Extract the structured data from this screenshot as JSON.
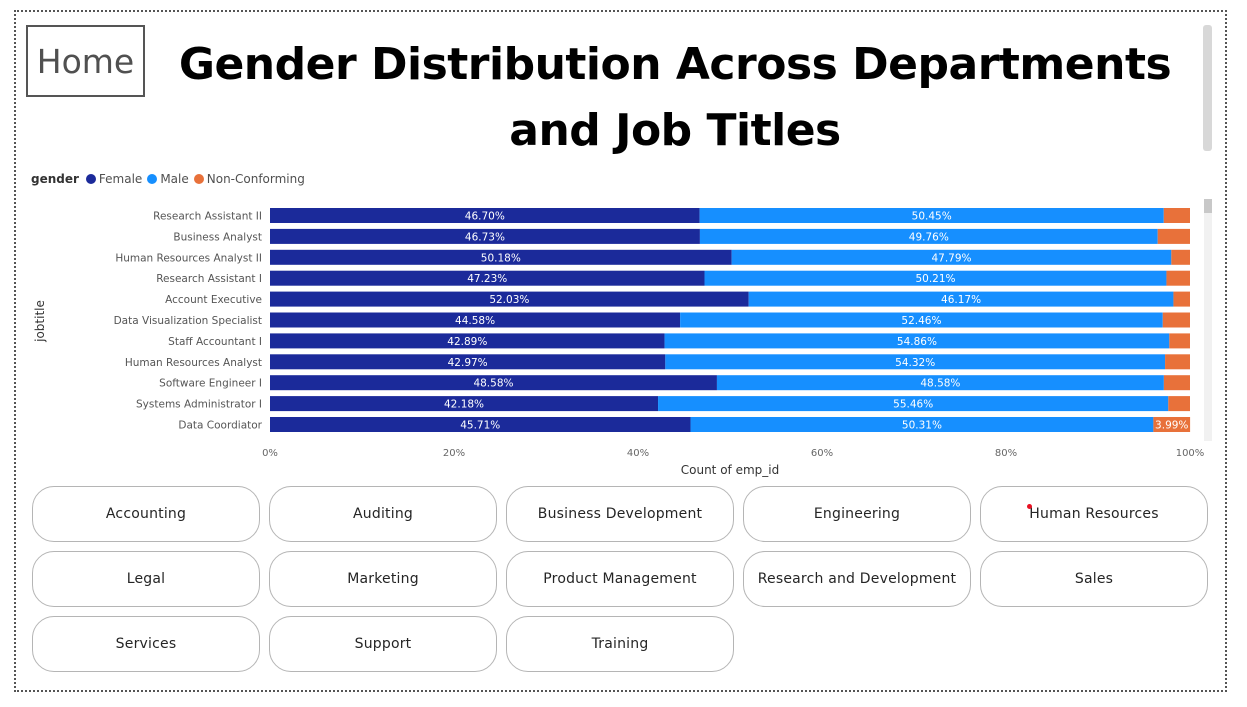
{
  "home_button": {
    "label": "Home"
  },
  "title": {
    "line1": "Gender Distribution Across Departments",
    "line2": "and Job Titles"
  },
  "legend": {
    "title": "gender",
    "items": [
      {
        "label": "Female",
        "color": "#1B2A9A"
      },
      {
        "label": "Male",
        "color": "#168FFF"
      },
      {
        "label": "Non-Conforming",
        "color": "#E8713A"
      }
    ]
  },
  "chart_data": {
    "type": "bar",
    "orientation": "horizontal",
    "stacking": "100%",
    "xlabel": "Count of emp_id",
    "ylabel": "jobtitle",
    "xlim": [
      0,
      100
    ],
    "x_ticks": [
      "0%",
      "20%",
      "40%",
      "60%",
      "80%",
      "100%"
    ],
    "grid": false,
    "legend_position": "top-left",
    "categories": [
      "Research Assistant II",
      "Business Analyst",
      "Human Resources Analyst II",
      "Research Assistant I",
      "Account Executive",
      "Data Visualization Specialist",
      "Staff Accountant I",
      "Human Resources Analyst",
      "Software Engineer I",
      "Systems Administrator I",
      "Data Coordiator"
    ],
    "series": [
      {
        "name": "Female",
        "color": "#1B2A9A",
        "values": [
          46.7,
          46.73,
          50.18,
          47.23,
          52.03,
          44.58,
          42.89,
          42.97,
          48.58,
          42.18,
          45.71
        ],
        "labels": [
          "46.70%",
          "46.73%",
          "50.18%",
          "47.23%",
          "52.03%",
          "44.58%",
          "42.89%",
          "42.97%",
          "48.58%",
          "42.18%",
          "45.71%"
        ]
      },
      {
        "name": "Male",
        "color": "#168FFF",
        "values": [
          50.45,
          49.76,
          47.79,
          50.21,
          46.17,
          52.46,
          54.86,
          54.32,
          48.58,
          55.46,
          50.31
        ],
        "labels": [
          "50.45%",
          "49.76%",
          "47.79%",
          "50.21%",
          "46.17%",
          "52.46%",
          "54.86%",
          "54.32%",
          "48.58%",
          "55.46%",
          "50.31%"
        ]
      },
      {
        "name": "Non-Conforming",
        "color": "#E8713A",
        "values": [
          2.85,
          3.51,
          2.03,
          2.56,
          1.8,
          2.96,
          2.25,
          2.71,
          2.84,
          2.36,
          3.99
        ],
        "labels": [
          "",
          "",
          "",
          "",
          "",
          "",
          "",
          "",
          "",
          "",
          "3.99%"
        ]
      }
    ]
  },
  "departments": [
    {
      "label": "Accounting"
    },
    {
      "label": "Auditing"
    },
    {
      "label": "Business Development"
    },
    {
      "label": "Engineering"
    },
    {
      "label": "Human Resources"
    },
    {
      "label": "Legal"
    },
    {
      "label": "Marketing"
    },
    {
      "label": "Product Management"
    },
    {
      "label": "Research and Development"
    },
    {
      "label": "Sales"
    },
    {
      "label": "Services"
    },
    {
      "label": "Support"
    },
    {
      "label": "Training"
    }
  ]
}
